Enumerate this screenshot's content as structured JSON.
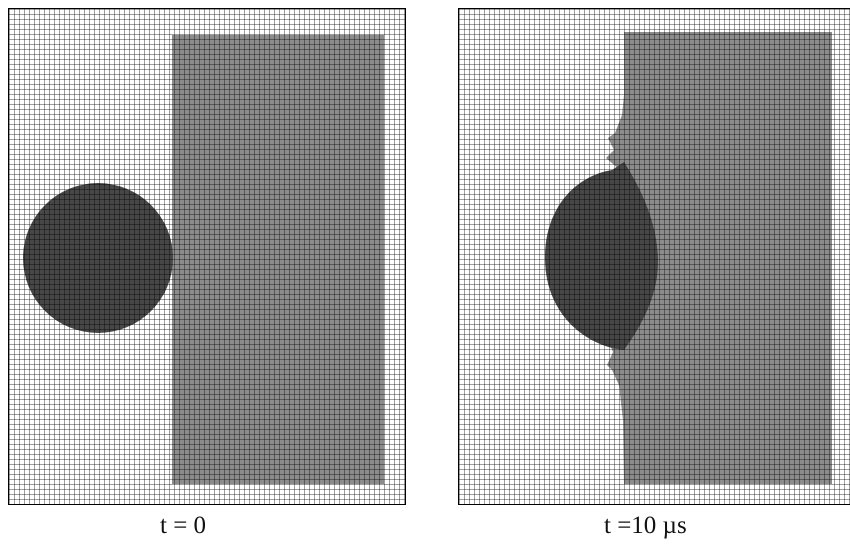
{
  "panels": [
    {
      "id": "before",
      "caption": "t = 0"
    },
    {
      "id": "after",
      "caption": "t =10 µs"
    }
  ],
  "colors": {
    "background": "#ffffff",
    "grid_line": "#000000",
    "target_plate": "#8c8c8c",
    "projectile": "#474747"
  }
}
